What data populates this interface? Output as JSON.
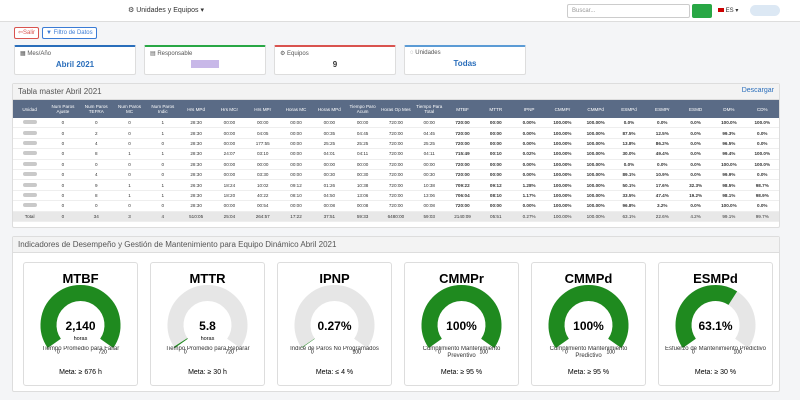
{
  "navbar": {
    "menu": "Unidades y Equipos",
    "search_placeholder": "Buscar...",
    "language": "ES"
  },
  "toolbar": {
    "exit": "Salir",
    "filter": "Filtro de Datos"
  },
  "info_cards": [
    {
      "label": "Mes/Año",
      "value": "Abril 2021"
    },
    {
      "label": "Responsable"
    },
    {
      "label": "Equipos",
      "value": "9"
    },
    {
      "label": "Unidades",
      "value": "Todas"
    }
  ],
  "table": {
    "title": "Tabla master Abril 2021",
    "download": "Descargar",
    "header": [
      "Unidad",
      "Num Paros Ajuste",
      "Num Paros TEFRA",
      "Num Paros MC",
      "Num Paros Indic",
      "Hrs MPd",
      "Hrs MCr",
      "Hrs MPr",
      "Horas MC",
      "Horas MPd",
      "Tiempo Paro Acum",
      "Horas Op Mes",
      "Tiempo Para Total",
      "MTBF",
      "MTTR",
      "IPNP",
      "CMMPr",
      "CMMPd",
      "ESMPd",
      "ESMPr",
      "ESMD",
      "DM%",
      "CD%"
    ],
    "rows": [
      [
        null,
        "0",
        "0",
        "0",
        "1",
        "28:30",
        "00:00",
        "00:00",
        "00:00",
        "00:00",
        "00:00",
        "720:00",
        "00:00",
        "720:00",
        "00:00",
        "0.00%",
        "100.00%",
        "100.00%",
        "0.0%",
        "0.0%",
        "0.0%",
        "100.0%",
        "100.0%"
      ],
      [
        null,
        "0",
        "2",
        "0",
        "1",
        "28:30",
        "00:00",
        "04:05",
        "00:00",
        "00:35",
        "04:45",
        "720:00",
        "04:45",
        "720:00",
        "00:00",
        "0.00%",
        "100.00%",
        "100.00%",
        "87.5%",
        "12.5%",
        "0.0%",
        "99.3%",
        "0.0%"
      ],
      [
        null,
        "0",
        "4",
        "0",
        "0",
        "28:30",
        "00:00",
        "177:55",
        "00:00",
        "25:25",
        "25:25",
        "720:00",
        "25:25",
        "720:00",
        "00:00",
        "0.00%",
        "100.00%",
        "100.00%",
        "13.8%",
        "86.2%",
        "0.0%",
        "96.5%",
        "0.0%"
      ],
      [
        null,
        "0",
        "8",
        "1",
        "1",
        "28:30",
        "24:07",
        "03:10",
        "00:00",
        "04:01",
        "04:11",
        "720:00",
        "04:11",
        "715:49",
        "00:10",
        "0.02%",
        "100.00%",
        "100.00%",
        "30.0%",
        "49.4%",
        "0.0%",
        "99.4%",
        "100.0%"
      ],
      [
        null,
        "0",
        "0",
        "0",
        "0",
        "28:30",
        "00:00",
        "00:00",
        "00:00",
        "00:00",
        "00:00",
        "720:00",
        "00:00",
        "720:00",
        "00:00",
        "0.00%",
        "100.00%",
        "100.00%",
        "0.0%",
        "0.0%",
        "0.0%",
        "100.0%",
        "100.0%"
      ],
      [
        null,
        "0",
        "4",
        "0",
        "0",
        "28:30",
        "00:00",
        "03:30",
        "00:00",
        "00:30",
        "00:30",
        "720:00",
        "00:30",
        "720:00",
        "00:00",
        "0.00%",
        "100.00%",
        "100.00%",
        "89.1%",
        "10.9%",
        "0.0%",
        "99.9%",
        "0.0%"
      ],
      [
        null,
        "0",
        "9",
        "1",
        "1",
        "26:30",
        "18:24",
        "10:02",
        "09:12",
        "01:26",
        "10:38",
        "720:00",
        "10:38",
        "709:22",
        "09:12",
        "1.28%",
        "100.00%",
        "100.00%",
        "50.1%",
        "17.6%",
        "32.3%",
        "98.5%",
        "98.7%"
      ],
      [
        null,
        "0",
        "8",
        "1",
        "1",
        "28:30",
        "18:20",
        "40:22",
        "08:10",
        "04:50",
        "13:06",
        "720:00",
        "13:06",
        "706:04",
        "08:10",
        "1.17%",
        "100.00%",
        "100.00%",
        "33.5%",
        "47.4%",
        "19.2%",
        "98.1%",
        "98.9%"
      ],
      [
        null,
        "0",
        "0",
        "0",
        "0",
        "28:30",
        "00:00",
        "00:54",
        "00:00",
        "00:08",
        "00:08",
        "720:00",
        "00:08",
        "720:00",
        "00:00",
        "0.00%",
        "100.00%",
        "100.00%",
        "96.8%",
        "3.2%",
        "0.0%",
        "100.0%",
        "0.0%"
      ],
      [
        "Total",
        "0",
        "34",
        "3",
        "4",
        "510:05",
        "25:04",
        "264:57",
        "17:22",
        "37:51",
        "59:33",
        "6480:00",
        "59:03",
        "2140:09",
        "05:51",
        "0.27%",
        "100.00%",
        "100.00%",
        "63.1%",
        "22.6%",
        "4.2%",
        "99.1%",
        "99.7%"
      ]
    ]
  },
  "indicators": {
    "title": "Indicadores de Desempeño y Gestión de Mantenimiento para Equipo Dinámico Abril 2021",
    "gauges": [
      {
        "title": "MTBF",
        "value": 2140,
        "value_label": "2,140",
        "unit": "horas",
        "min": 0,
        "max": 720,
        "description": "Tiempo Promedio para Fallar",
        "meta": "Meta: ≥ 676 h"
      },
      {
        "title": "MTTR",
        "value": 5.8,
        "unit": "horas",
        "min": 0,
        "max": 720,
        "description": "Tiempo Promedio para Reparar",
        "meta": "Meta: ≥ 30 h"
      },
      {
        "title": "IPNP",
        "value": 0.27,
        "value_label": "0.27%",
        "min": 0,
        "max": 100,
        "description": "Índice de Paros No Programados",
        "meta": "Meta: ≤ 4 %"
      },
      {
        "title": "CMMPr",
        "value": 100,
        "value_label": "100%",
        "min": 0,
        "max": 100,
        "description": "Cumplimiento Mantenimiento Preventivo",
        "meta": "Meta: ≥ 95 %"
      },
      {
        "title": "CMMPd",
        "value": 100,
        "value_label": "100%",
        "min": 0,
        "max": 100,
        "description": "Cumplimiento Mantenimiento Predictivo",
        "meta": "Meta: ≥ 95 %"
      },
      {
        "title": "ESMPd",
        "value": 63.1,
        "value_label": "63.1%",
        "min": 0,
        "max": 100,
        "description": "Esfuerzo de Mantenimiento Predictivo",
        "meta": "Meta: ≥ 30 %"
      }
    ]
  }
}
